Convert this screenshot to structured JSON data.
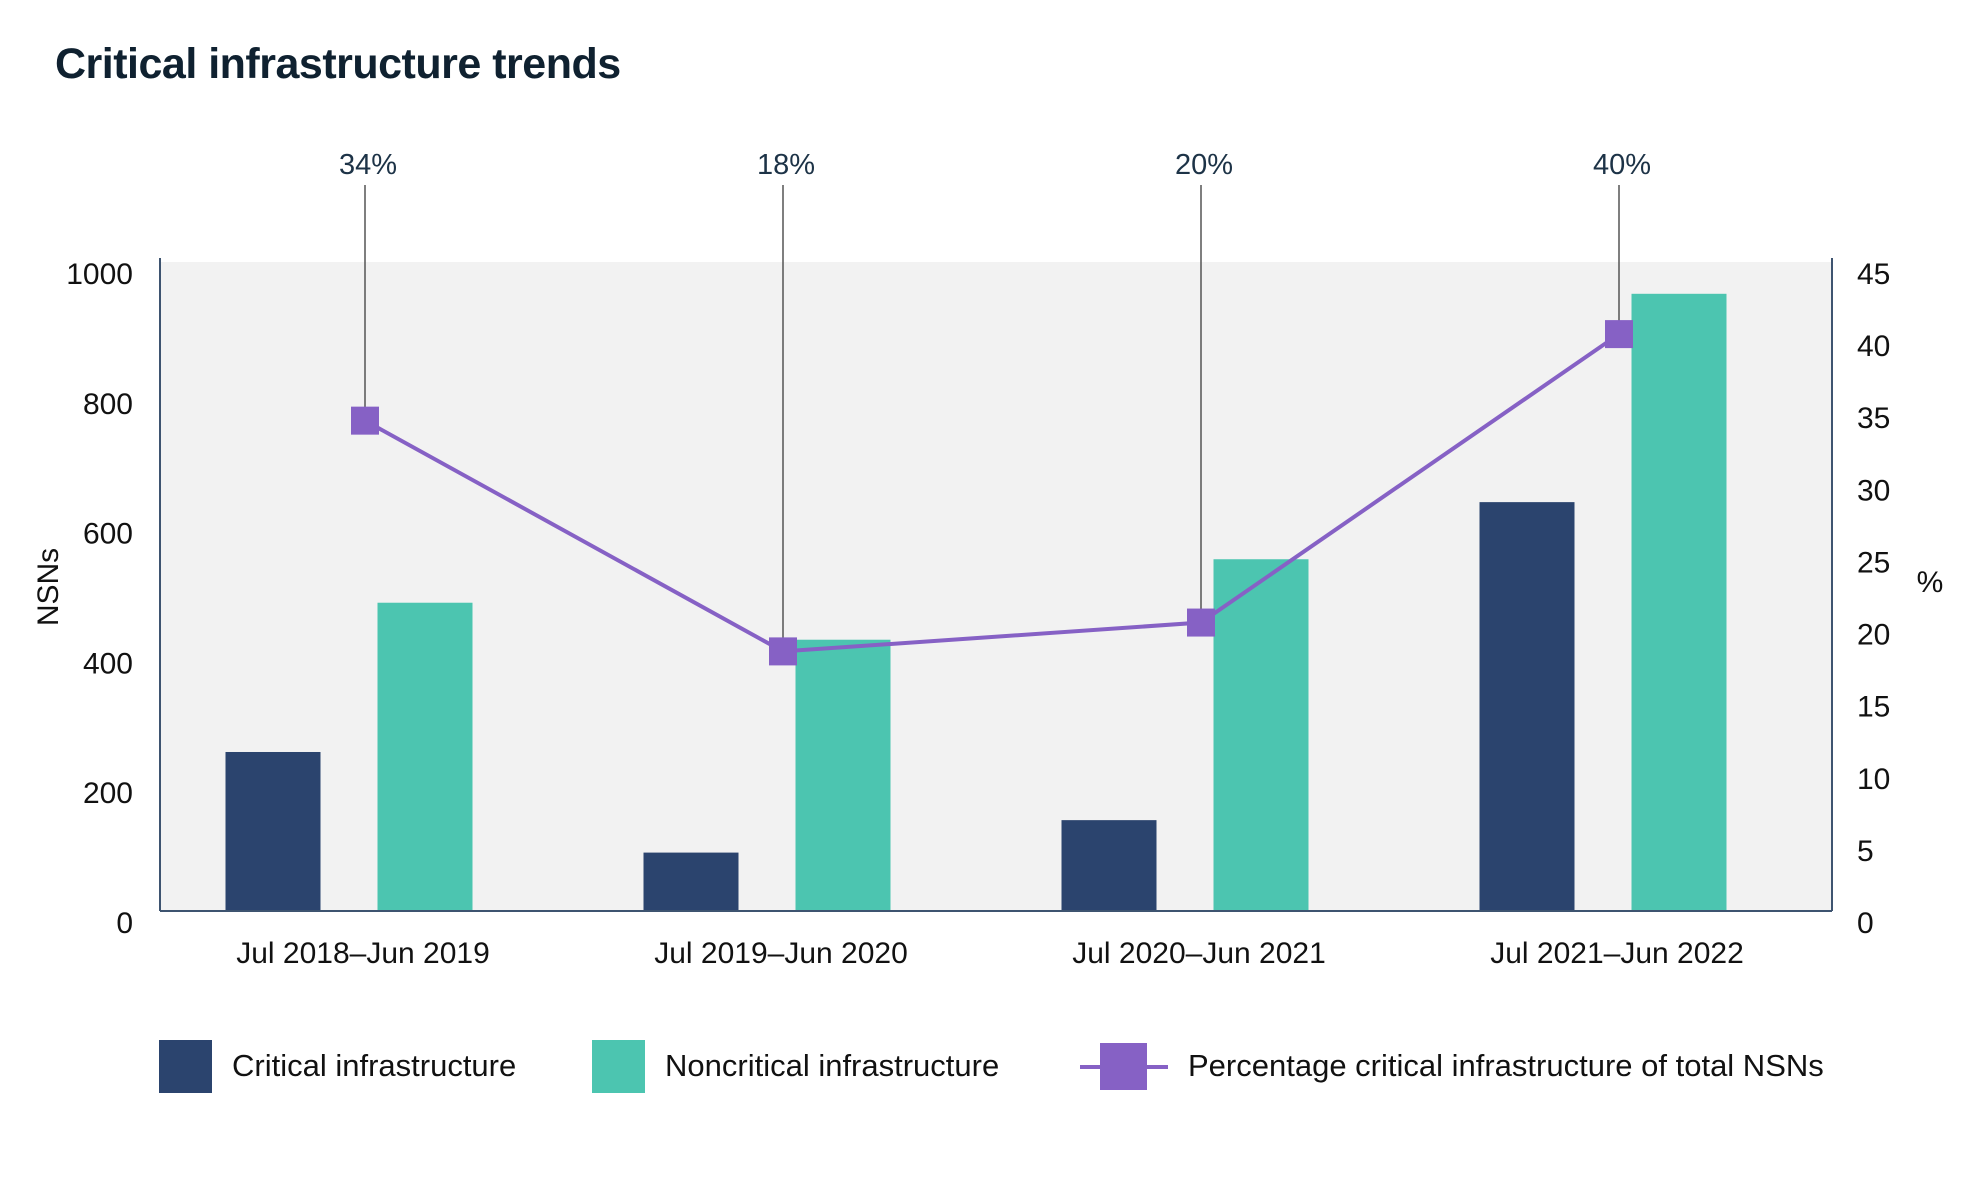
{
  "title": "Critical infrastructure trends",
  "colors": {
    "critical": "#2b446e",
    "noncritical": "#4cc5b0",
    "percentage": "#8661c5",
    "plot_bg": "#f2f2f2",
    "axis": "#3e5470",
    "leader": "#555555"
  },
  "legend": [
    {
      "key": "critical",
      "label": "Critical infrastructure",
      "type": "bar"
    },
    {
      "key": "noncritical",
      "label": "Noncritical infrastructure",
      "type": "bar"
    },
    {
      "key": "percentage",
      "label": "Percentage critical infrastructure of total NSNs",
      "type": "line-marker"
    }
  ],
  "chart_data": {
    "type": "bar",
    "title": "Critical infrastructure trends",
    "categories": [
      "Jul 2018–Jun 2019",
      "Jul 2019–Jun 2020",
      "Jul 2020–Jun 2021",
      "Jul 2021–Jun 2022"
    ],
    "series": [
      {
        "name": "Critical infrastructure",
        "type": "bar",
        "axis": "left",
        "values": [
          245,
          90,
          140,
          630
        ]
      },
      {
        "name": "Noncritical infrastructure",
        "type": "bar",
        "axis": "left",
        "values": [
          475,
          418,
          542,
          951
        ]
      },
      {
        "name": "Percentage critical infrastructure of total NSNs",
        "type": "line",
        "axis": "right",
        "values": [
          34,
          18,
          20,
          40
        ],
        "labels": [
          "34%",
          "18%",
          "20%",
          "40%"
        ]
      }
    ],
    "xlabel": "",
    "ylabel": "NSNs",
    "ylim": [
      0,
      1000
    ],
    "yticks": [
      0,
      200,
      400,
      600,
      800,
      1000
    ],
    "y2label": "%",
    "y2lim": [
      0,
      45
    ],
    "y2ticks": [
      0,
      5,
      10,
      15,
      20,
      25,
      30,
      35,
      40,
      45
    ],
    "grid": false,
    "legend_position": "bottom"
  }
}
